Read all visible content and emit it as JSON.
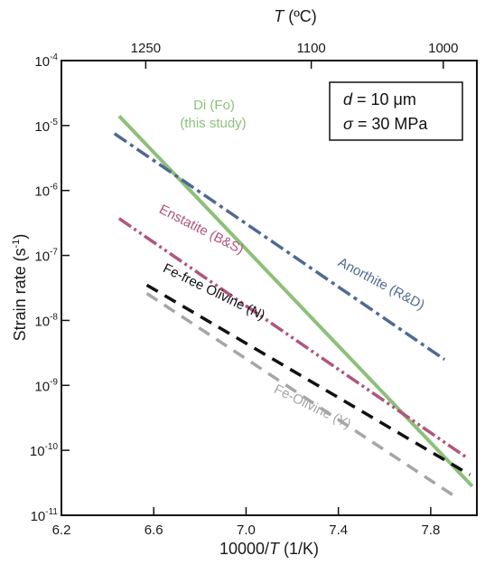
{
  "chart_data": {
    "type": "line",
    "title": "",
    "xlabel": {
      "main": "10000/",
      "italic": "T",
      "unit": " (1/K)"
    },
    "ylabel": {
      "main": "Strain rate (s",
      "sup": "-1",
      "close": ")"
    },
    "x2label": {
      "italic": "T",
      "unit": " (ºC)"
    },
    "xlim": [
      6.2,
      8.0
    ],
    "ylim_log10": [
      -11,
      -4
    ],
    "yscale": "log",
    "x_ticks": [
      6.2,
      6.6,
      7.0,
      7.4,
      7.8
    ],
    "x_tick_labels": [
      "6.2",
      "6.6",
      "7.0",
      "7.4",
      "7.8"
    ],
    "y_ticks_exp": [
      -11,
      -10,
      -9,
      -8,
      -7,
      -6,
      -5,
      -4
    ],
    "y_tick_labels": [
      "10-11",
      "10-10",
      "10-9",
      "10-8",
      "10-7",
      "10-6",
      "10-5",
      "10-4"
    ],
    "top_ticks_celsius": [
      1250,
      1100,
      1000
    ],
    "top_tick_labels": [
      "1250",
      "1100",
      "1000"
    ],
    "parameters_box": {
      "line1": {
        "symbol": "d",
        "text": " = 10 μm"
      },
      "line2": {
        "symbol": "σ",
        "text": " =  30 MPa"
      }
    },
    "series": [
      {
        "name": "Di (Fo)",
        "name_line2": "(this study)",
        "color": "#8dc07a",
        "style": "solid",
        "x": [
          6.45,
          7.98
        ],
        "y": [
          1.4e-05,
          2.8e-11
        ]
      },
      {
        "name": "Anorthite (R&D)",
        "color": "#4f6a94",
        "style": "dashdot",
        "x": [
          6.43,
          7.86
        ],
        "y": [
          7.5e-06,
          2.5e-09
        ]
      },
      {
        "name": "Enstatite  (B&S)",
        "color": "#b0557e",
        "style": "dashdotdot",
        "x": [
          6.45,
          7.95
        ],
        "y": [
          3.7e-07,
          8e-11
        ]
      },
      {
        "name": "Fe-free Olivine (N)",
        "color": "#111111",
        "style": "dashed",
        "x": [
          6.57,
          7.97
        ],
        "y": [
          3.5e-08,
          4.2e-11
        ]
      },
      {
        "name": "Fe-Olivine (Y)",
        "color": "#a6a6a6",
        "style": "dashed",
        "x": [
          6.57,
          7.92
        ],
        "y": [
          2.6e-08,
          1.8e-11
        ]
      }
    ]
  }
}
